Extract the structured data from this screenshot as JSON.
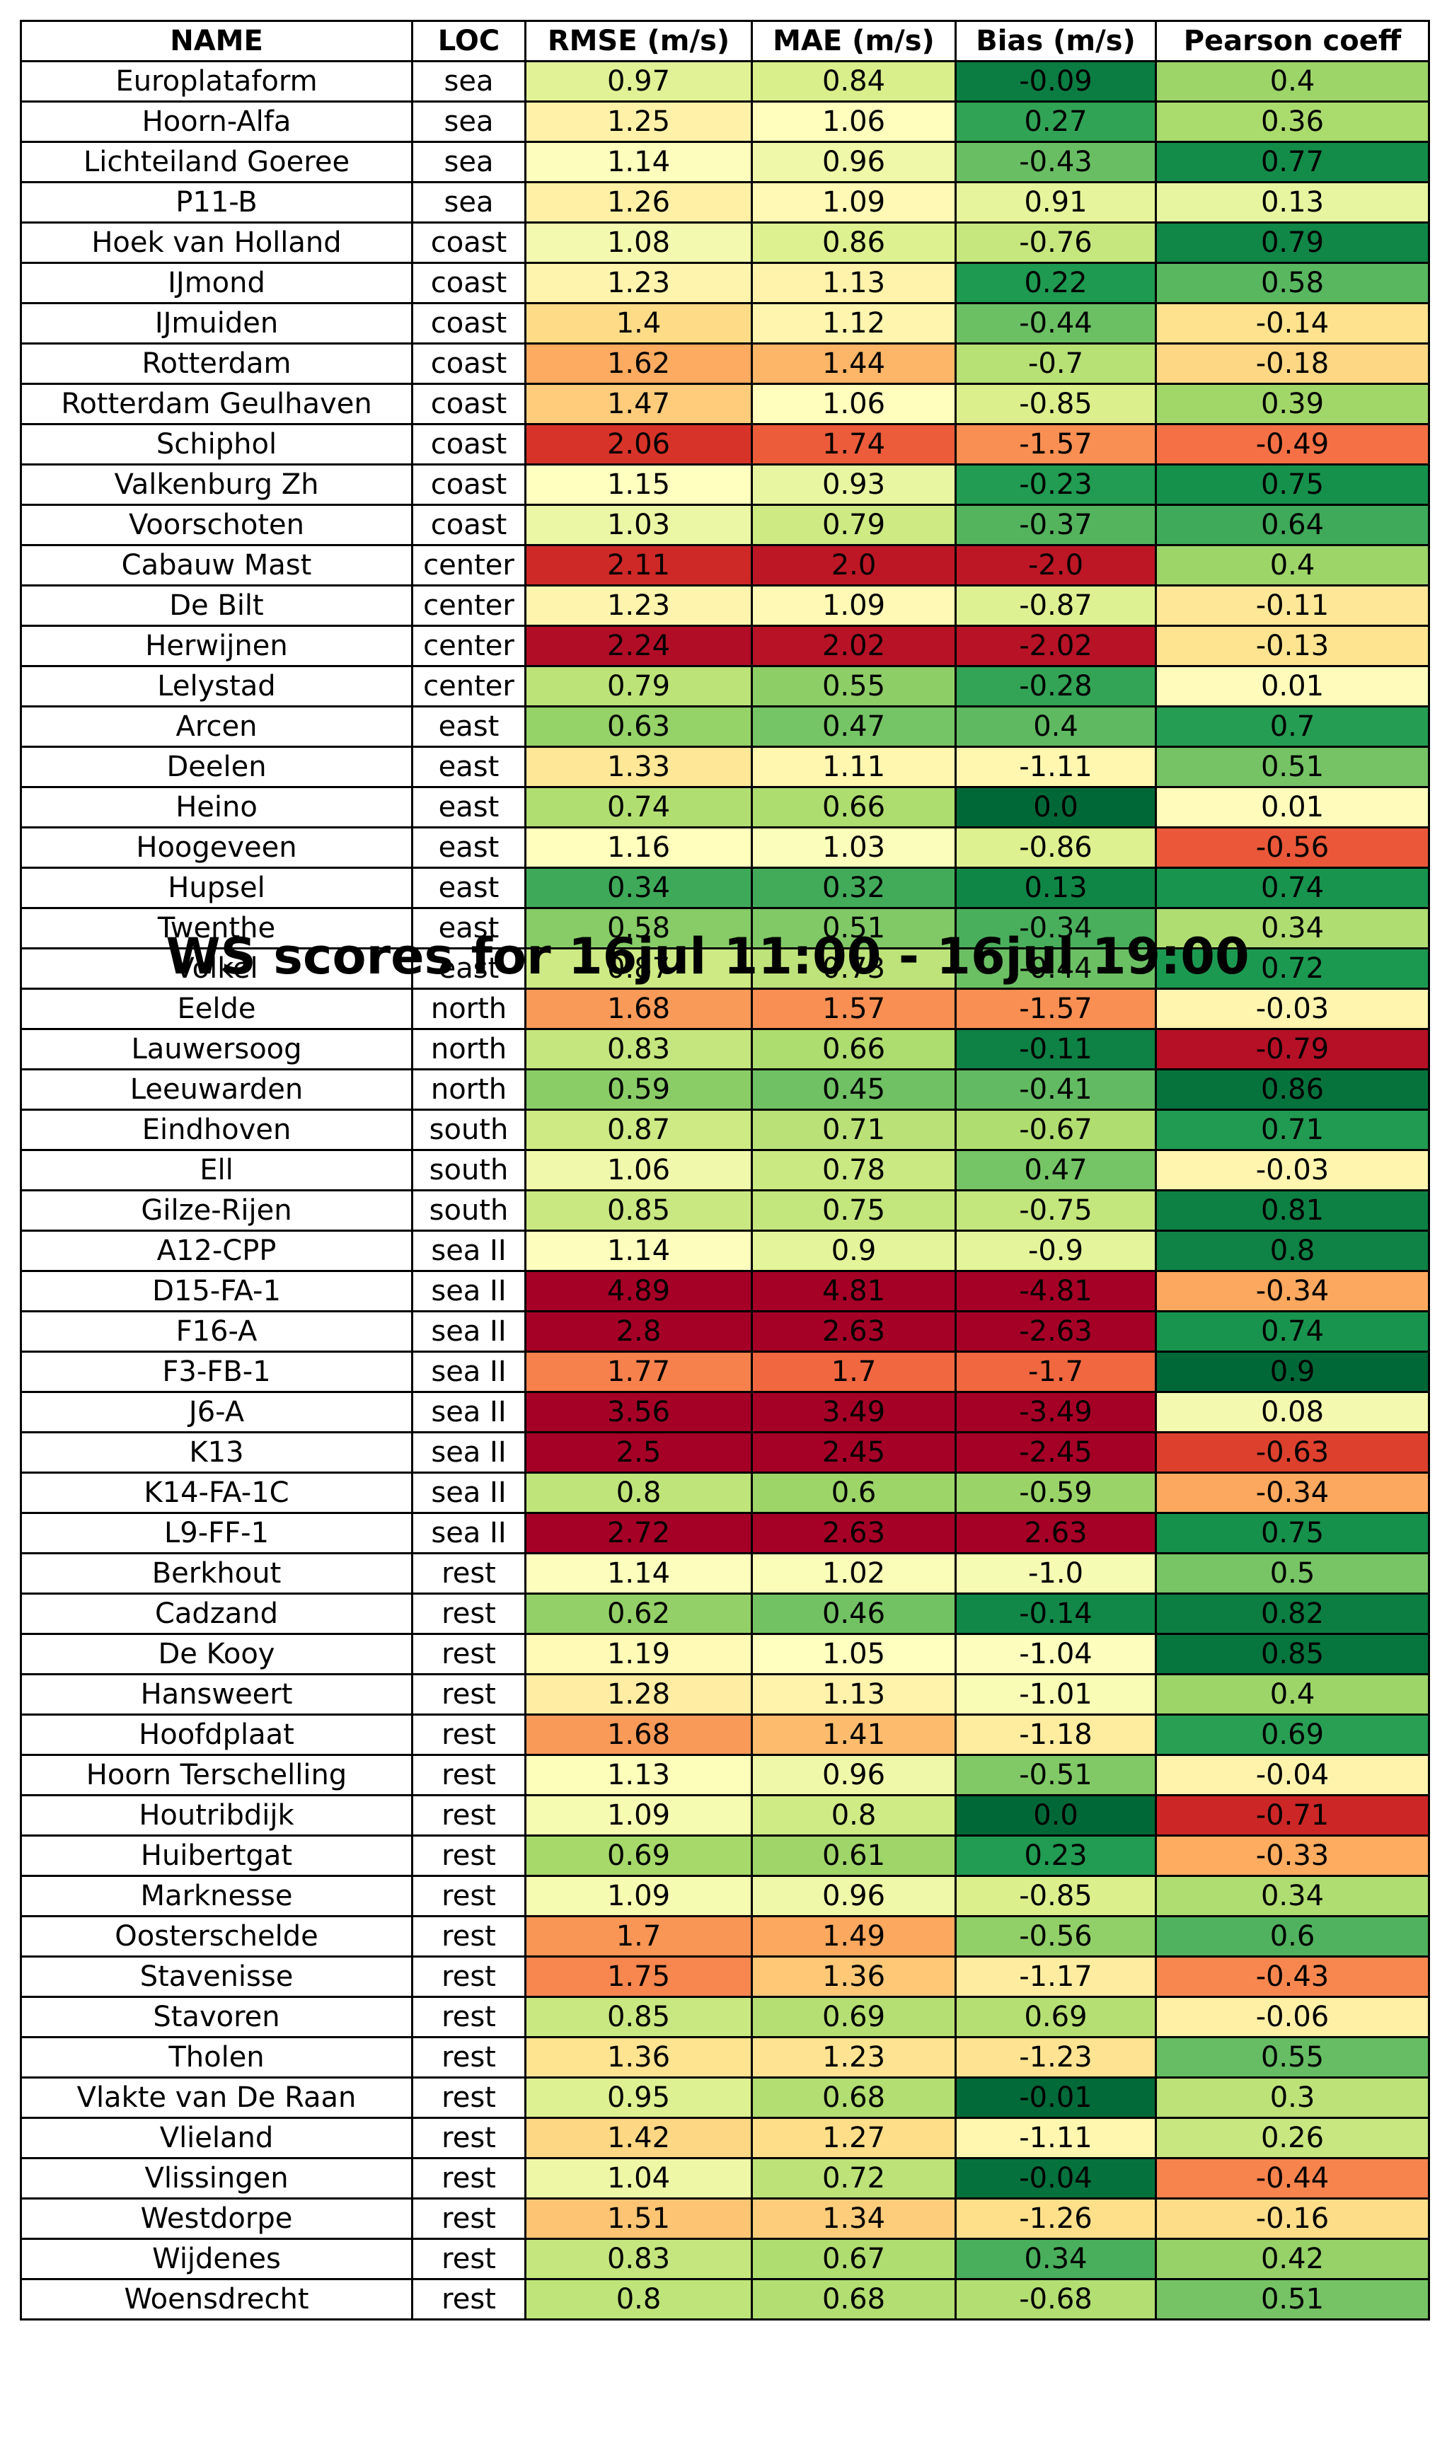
{
  "chart_data": {
    "type": "table",
    "title": "WS scores for 16jul 11:00 - 16jul 19:00",
    "columns": [
      "NAME",
      "LOC",
      "RMSE (m/s)",
      "MAE (m/s)",
      "Bias (m/s)",
      "Pearson coeff"
    ],
    "rows": [
      [
        "Europlataform",
        "sea",
        "0.97",
        "0.84",
        "-0.09",
        "0.4"
      ],
      [
        "Hoorn-Alfa",
        "sea",
        "1.25",
        "1.06",
        "0.27",
        "0.36"
      ],
      [
        "Lichteiland Goeree",
        "sea",
        "1.14",
        "0.96",
        "-0.43",
        "0.77"
      ],
      [
        "P11-B",
        "sea",
        "1.26",
        "1.09",
        "0.91",
        "0.13"
      ],
      [
        "Hoek van Holland",
        "coast",
        "1.08",
        "0.86",
        "-0.76",
        "0.79"
      ],
      [
        "IJmond",
        "coast",
        "1.23",
        "1.13",
        "0.22",
        "0.58"
      ],
      [
        "IJmuiden",
        "coast",
        "1.4",
        "1.12",
        "-0.44",
        "-0.14"
      ],
      [
        "Rotterdam",
        "coast",
        "1.62",
        "1.44",
        "-0.7",
        "-0.18"
      ],
      [
        "Rotterdam Geulhaven",
        "coast",
        "1.47",
        "1.06",
        "-0.85",
        "0.39"
      ],
      [
        "Schiphol",
        "coast",
        "2.06",
        "1.74",
        "-1.57",
        "-0.49"
      ],
      [
        "Valkenburg Zh",
        "coast",
        "1.15",
        "0.93",
        "-0.23",
        "0.75"
      ],
      [
        "Voorschoten",
        "coast",
        "1.03",
        "0.79",
        "-0.37",
        "0.64"
      ],
      [
        "Cabauw Mast",
        "center",
        "2.11",
        "2.0",
        "-2.0",
        "0.4"
      ],
      [
        "De Bilt",
        "center",
        "1.23",
        "1.09",
        "-0.87",
        "-0.11"
      ],
      [
        "Herwijnen",
        "center",
        "2.24",
        "2.02",
        "-2.02",
        "-0.13"
      ],
      [
        "Lelystad",
        "center",
        "0.79",
        "0.55",
        "-0.28",
        "0.01"
      ],
      [
        "Arcen",
        "east",
        "0.63",
        "0.47",
        "0.4",
        "0.7"
      ],
      [
        "Deelen",
        "east",
        "1.33",
        "1.11",
        "-1.11",
        "0.51"
      ],
      [
        "Heino",
        "east",
        "0.74",
        "0.66",
        "0.0",
        "0.01"
      ],
      [
        "Hoogeveen",
        "east",
        "1.16",
        "1.03",
        "-0.86",
        "-0.56"
      ],
      [
        "Hupsel",
        "east",
        "0.34",
        "0.32",
        "0.13",
        "0.74"
      ],
      [
        "Twenthe",
        "east",
        "0.58",
        "0.51",
        "-0.34",
        "0.34"
      ],
      [
        "Volkel",
        "east",
        "0.87",
        "0.73",
        "-0.44",
        "0.72"
      ],
      [
        "Eelde",
        "north",
        "1.68",
        "1.57",
        "-1.57",
        "-0.03"
      ],
      [
        "Lauwersoog",
        "north",
        "0.83",
        "0.66",
        "-0.11",
        "-0.79"
      ],
      [
        "Leeuwarden",
        "north",
        "0.59",
        "0.45",
        "-0.41",
        "0.86"
      ],
      [
        "Eindhoven",
        "south",
        "0.87",
        "0.71",
        "-0.67",
        "0.71"
      ],
      [
        "Ell",
        "south",
        "1.06",
        "0.78",
        "0.47",
        "-0.03"
      ],
      [
        "Gilze-Rijen",
        "south",
        "0.85",
        "0.75",
        "-0.75",
        "0.81"
      ],
      [
        "A12-CPP",
        "sea II",
        "1.14",
        "0.9",
        "-0.9",
        "0.8"
      ],
      [
        "D15-FA-1",
        "sea II",
        "4.89",
        "4.81",
        "-4.81",
        "-0.34"
      ],
      [
        "F16-A",
        "sea II",
        "2.8",
        "2.63",
        "-2.63",
        "0.74"
      ],
      [
        "F3-FB-1",
        "sea II",
        "1.77",
        "1.7",
        "-1.7",
        "0.9"
      ],
      [
        "J6-A",
        "sea II",
        "3.56",
        "3.49",
        "-3.49",
        "0.08"
      ],
      [
        "K13",
        "sea II",
        "2.5",
        "2.45",
        "-2.45",
        "-0.63"
      ],
      [
        "K14-FA-1C",
        "sea II",
        "0.8",
        "0.6",
        "-0.59",
        "-0.34"
      ],
      [
        "L9-FF-1",
        "sea II",
        "2.72",
        "2.63",
        "2.63",
        "0.75"
      ],
      [
        "Berkhout",
        "rest",
        "1.14",
        "1.02",
        "-1.0",
        "0.5"
      ],
      [
        "Cadzand",
        "rest",
        "0.62",
        "0.46",
        "-0.14",
        "0.82"
      ],
      [
        "De Kooy",
        "rest",
        "1.19",
        "1.05",
        "-1.04",
        "0.85"
      ],
      [
        "Hansweert",
        "rest",
        "1.28",
        "1.13",
        "-1.01",
        "0.4"
      ],
      [
        "Hoofdplaat",
        "rest",
        "1.68",
        "1.41",
        "-1.18",
        "0.69"
      ],
      [
        "Hoorn Terschelling",
        "rest",
        "1.13",
        "0.96",
        "-0.51",
        "-0.04"
      ],
      [
        "Houtribdijk",
        "rest",
        "1.09",
        "0.8",
        "0.0",
        "-0.71"
      ],
      [
        "Huibertgat",
        "rest",
        "0.69",
        "0.61",
        "0.23",
        "-0.33"
      ],
      [
        "Marknesse",
        "rest",
        "1.09",
        "0.96",
        "-0.85",
        "0.34"
      ],
      [
        "Oosterschelde",
        "rest",
        "1.7",
        "1.49",
        "-0.56",
        "0.6"
      ],
      [
        "Stavenisse",
        "rest",
        "1.75",
        "1.36",
        "-1.17",
        "-0.43"
      ],
      [
        "Stavoren",
        "rest",
        "0.85",
        "0.69",
        "0.69",
        "-0.06"
      ],
      [
        "Tholen",
        "rest",
        "1.36",
        "1.23",
        "-1.23",
        "0.55"
      ],
      [
        "Vlakte van De Raan",
        "rest",
        "0.95",
        "0.68",
        "-0.01",
        "0.3"
      ],
      [
        "Vlieland",
        "rest",
        "1.42",
        "1.27",
        "-1.11",
        "0.26"
      ],
      [
        "Vlissingen",
        "rest",
        "1.04",
        "0.72",
        "-0.04",
        "-0.44"
      ],
      [
        "Westdorpe",
        "rest",
        "1.51",
        "1.34",
        "-1.26",
        "-0.16"
      ],
      [
        "Wijdenes",
        "rest",
        "0.83",
        "0.67",
        "0.34",
        "0.42"
      ],
      [
        "Woensdrecht",
        "rest",
        "0.8",
        "0.68",
        "-0.68",
        "0.51"
      ]
    ],
    "colormap": "RdYlGn (green = good score, red = poor score)",
    "colors": {
      "good": "#006837",
      "neutral": "#ffffbf",
      "poor": "#a50026"
    }
  }
}
